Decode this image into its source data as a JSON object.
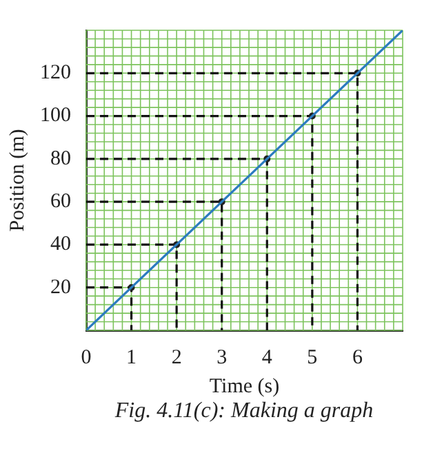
{
  "chart_data": {
    "type": "line",
    "xlabel": "Time (s)",
    "ylabel": "Position (m)",
    "series": [
      {
        "color": "#2b7bbf",
        "x": [
          0,
          7
        ],
        "values": [
          0,
          140
        ],
        "marker": "none",
        "line_style": "solid"
      },
      {
        "type": "scatter",
        "color": "#222222",
        "x": [
          1,
          2,
          3,
          4,
          5,
          6
        ],
        "values": [
          20,
          40,
          60,
          80,
          100,
          120
        ],
        "marker": "circle"
      },
      {
        "color": "#111111",
        "x": [
          0,
          1,
          1
        ],
        "values": [
          20,
          20,
          0
        ],
        "marker": "none",
        "line_style": "dashed"
      },
      {
        "color": "#111111",
        "x": [
          0,
          2,
          2
        ],
        "values": [
          40,
          40,
          0
        ],
        "marker": "none",
        "line_style": "dashed"
      },
      {
        "color": "#111111",
        "x": [
          0,
          3,
          3
        ],
        "values": [
          60,
          60,
          0
        ],
        "marker": "none",
        "line_style": "dashed"
      },
      {
        "color": "#111111",
        "x": [
          0,
          4,
          4
        ],
        "values": [
          80,
          80,
          0
        ],
        "marker": "none",
        "line_style": "dashed"
      },
      {
        "color": "#111111",
        "x": [
          0,
          5,
          5
        ],
        "values": [
          100,
          100,
          0
        ],
        "marker": "none",
        "line_style": "dashed"
      },
      {
        "color": "#111111",
        "x": [
          0,
          6,
          6
        ],
        "values": [
          120,
          120,
          0
        ],
        "marker": "none",
        "line_style": "dashed"
      }
    ],
    "xlim": [
      0,
      7
    ],
    "ylim": [
      0,
      140
    ],
    "xticks": [
      0,
      1,
      2,
      3,
      4,
      5,
      6
    ],
    "yticks": [
      20,
      40,
      60,
      80,
      100,
      120
    ],
    "grid": true,
    "legend": false,
    "annotations": [
      "Fig. 4.11(c): Making a graph"
    ]
  }
}
